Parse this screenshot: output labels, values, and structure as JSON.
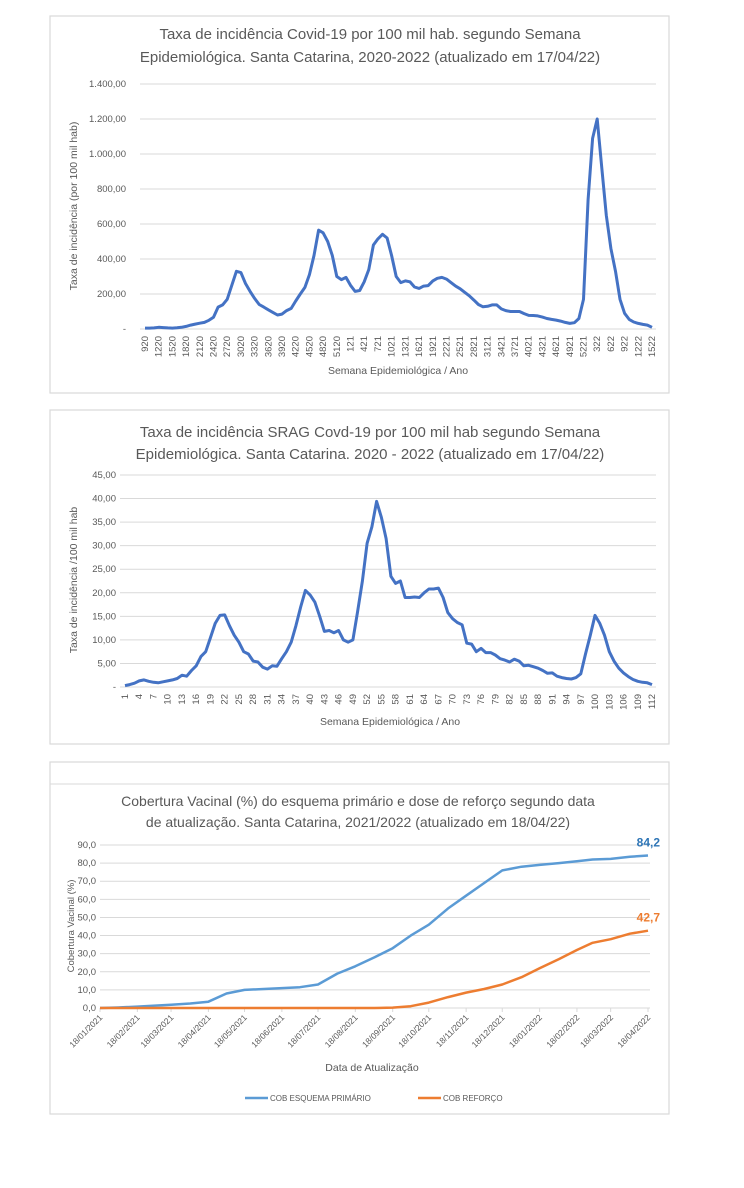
{
  "chart_data": [
    {
      "type": "line",
      "title": [
        "Taxa de incidência Covid-19 por 100 mil hab. segundo Semana",
        "Epidemiológica. Santa Catarina, 2020-2022 (atualizado em 17/04/22)"
      ],
      "xlabel": "Semana Epidemiológica / Ano",
      "ylabel": "Taxa de incidência (por 100 mil hab)",
      "ylim": [
        0,
        1400
      ],
      "yticks": [
        "-",
        "200,00",
        "400,00",
        "600,00",
        "800,00",
        "1.000,00",
        "1.200,00",
        "1.400,00"
      ],
      "xtick_labels": [
        "920",
        "1220",
        "1520",
        "1820",
        "2120",
        "2420",
        "2720",
        "3020",
        "3320",
        "3620",
        "3920",
        "4220",
        "4520",
        "4820",
        "5120",
        "121",
        "421",
        "721",
        "1021",
        "1321",
        "1621",
        "1921",
        "2221",
        "2521",
        "2821",
        "3121",
        "3421",
        "3721",
        "4021",
        "4321",
        "4621",
        "4921",
        "5221",
        "322",
        "622",
        "922",
        "1222",
        "1522"
      ],
      "grid": true,
      "line_color": "#4472C4",
      "values": [
        5,
        5,
        6,
        10,
        8,
        6,
        5,
        7,
        10,
        15,
        22,
        28,
        33,
        38,
        50,
        67,
        125,
        138,
        170,
        250,
        330,
        322,
        260,
        215,
        175,
        140,
        125,
        110,
        95,
        80,
        85,
        105,
        118,
        160,
        200,
        238,
        310,
        420,
        565,
        550,
        500,
        420,
        300,
        282,
        295,
        250,
        215,
        220,
        270,
        340,
        480,
        515,
        541,
        520,
        420,
        300,
        265,
        275,
        270,
        240,
        232,
        245,
        248,
        275,
        290,
        295,
        285,
        265,
        245,
        230,
        210,
        190,
        165,
        140,
        127,
        130,
        138,
        138,
        115,
        105,
        100,
        100,
        100,
        88,
        78,
        77,
        75,
        68,
        60,
        55,
        51,
        45,
        38,
        32,
        36,
        60,
        170,
        740,
        1090,
        1200,
        920,
        650,
        460,
        330,
        170,
        90,
        55,
        40,
        32,
        26,
        22,
        10
      ]
    },
    {
      "type": "line",
      "title": [
        "Taxa de incidência SRAG Covd-19 por 100 mil hab segundo Semana",
        "Epidemiológica. Santa Catarina. 2020 - 2022 (atualizado em 17/04/22)"
      ],
      "xlabel": "Semana Epidemiológica / Ano",
      "ylabel": "Taxa de incidência /100 mil hab",
      "ylim": [
        0,
        45
      ],
      "yticks": [
        "-",
        "5,00",
        "10,00",
        "15,00",
        "20,00",
        "25,00",
        "30,00",
        "35,00",
        "40,00",
        "45,00"
      ],
      "xtick_labels": [
        "1",
        "4",
        "7",
        "10",
        "13",
        "16",
        "19",
        "22",
        "25",
        "28",
        "31",
        "34",
        "37",
        "40",
        "43",
        "46",
        "49",
        "52",
        "55",
        "58",
        "61",
        "64",
        "67",
        "70",
        "73",
        "76",
        "79",
        "82",
        "85",
        "88",
        "91",
        "94",
        "97",
        "100",
        "103",
        "106",
        "109",
        "112"
      ],
      "grid": true,
      "line_color": "#4472C4",
      "values": [
        0.3,
        0.5,
        0.8,
        1.3,
        1.5,
        1.2,
        1.0,
        0.9,
        1.1,
        1.3,
        1.5,
        1.8,
        2.5,
        2.3,
        3.5,
        4.5,
        6.5,
        7.5,
        10.5,
        13.5,
        15.2,
        15.3,
        13,
        11,
        9.5,
        7.5,
        7,
        5.5,
        5.3,
        4.2,
        3.8,
        4.5,
        4.4,
        6,
        7.5,
        9.5,
        13,
        17,
        20.5,
        19.5,
        18,
        15,
        11.8,
        12,
        11.5,
        12,
        10,
        9.5,
        10,
        16,
        22.5,
        30.5,
        34,
        39.4,
        36,
        31.5,
        23.5,
        22,
        22.5,
        19,
        19,
        19.1,
        19,
        20,
        20.8,
        20.8,
        21,
        19,
        15.8,
        14.5,
        13.7,
        13.2,
        9.3,
        9.1,
        7.5,
        8.2,
        7.3,
        7.3,
        6.8,
        6,
        5.7,
        5.3,
        5.9,
        5.5,
        4.5,
        4.6,
        4.3,
        4,
        3.5,
        2.9,
        3,
        2.3,
        2,
        1.8,
        1.7,
        2,
        2.8,
        7,
        11,
        15.2,
        13.5,
        11,
        7.5,
        5.5,
        4,
        3,
        2.2,
        1.6,
        1.2,
        1,
        0.9,
        0.5
      ]
    },
    {
      "type": "line",
      "title": [
        "Cobertura Vacinal (%) do esquema primário e dose de reforço segundo data",
        "de atualização. Santa Catarina, 2021/2022 (atualizado em 18/04/22)"
      ],
      "xlabel": "Data de Atualização",
      "ylabel": "Cobertura Vacinal (%)",
      "ylim": [
        0,
        90
      ],
      "yticks": [
        "0,0",
        "10,0",
        "20,0",
        "30,0",
        "40,0",
        "50,0",
        "60,0",
        "70,0",
        "80,0",
        "90,0"
      ],
      "xtick_labels": [
        "18/01/2021",
        "18/02/2021",
        "18/03/2021",
        "18/04/2021",
        "18/05/2021",
        "18/06/2021",
        "18/07/2021",
        "18/08/2021",
        "18/09/2021",
        "18/10/2021",
        "18/11/2021",
        "18/12/2021",
        "18/01/2022",
        "18/02/2022",
        "18/03/2022",
        "18/04/2022"
      ],
      "grid": true,
      "legend_position": "bottom",
      "x": [
        "18/01/2021",
        "02/02/2021",
        "18/02/2021",
        "03/03/2021",
        "18/03/2021",
        "03/04/2021",
        "18/04/2021",
        "03/05/2021",
        "18/05/2021",
        "03/06/2021",
        "18/06/2021",
        "03/07/2021",
        "18/07/2021",
        "03/08/2021",
        "18/08/2021",
        "03/09/2021",
        "18/09/2021",
        "03/10/2021",
        "18/10/2021",
        "03/11/2021",
        "18/11/2021",
        "03/12/2021",
        "18/12/2021",
        "03/01/2022",
        "18/01/2022",
        "03/02/2022",
        "18/02/2022",
        "03/03/2022",
        "18/03/2022",
        "03/04/2022",
        "18/04/2022"
      ],
      "series": [
        {
          "name": "COB ESQUEMA PRIMÁRIO",
          "color": "#5B9BD5",
          "end_label": "84,2",
          "values": [
            0,
            0.3,
            0.8,
            1.2,
            1.8,
            2.5,
            3.5,
            8,
            10,
            10.5,
            11,
            11.5,
            13,
            19,
            23,
            28,
            33,
            40,
            46,
            55,
            62,
            69,
            76,
            78,
            79,
            80,
            81,
            82,
            82.3,
            83.5,
            84.2
          ]
        },
        {
          "name": "COB REFORÇO",
          "color": "#ED7D31",
          "end_label": "42,7",
          "values": [
            0,
            0,
            0,
            0,
            0,
            0,
            0,
            0,
            0,
            0,
            0,
            0,
            0,
            0,
            0,
            0,
            0.2,
            1,
            3,
            6,
            8.5,
            10.5,
            13,
            17,
            22,
            27,
            32,
            36,
            38,
            41,
            42.7
          ]
        }
      ]
    }
  ]
}
